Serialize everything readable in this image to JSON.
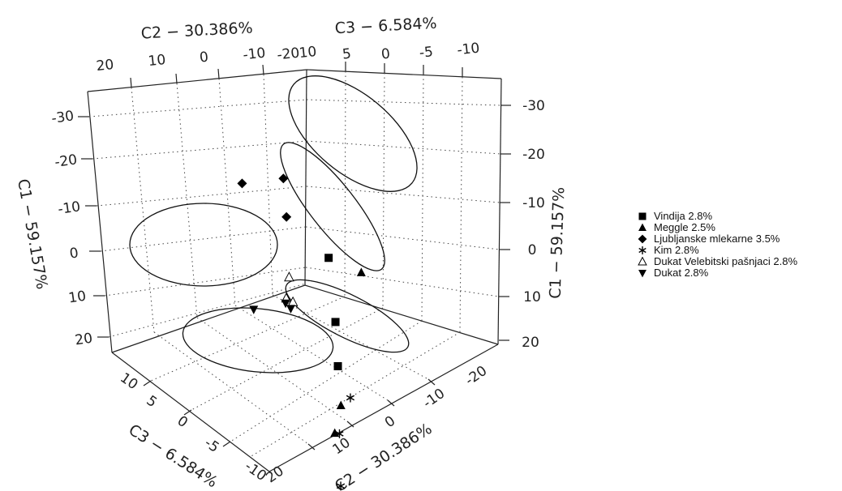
{
  "chart_data": {
    "type": "scatter",
    "projection": "3d",
    "title": "",
    "axes": {
      "c1": {
        "label": "C1 − 59.157%",
        "range": [
          -30,
          20
        ],
        "ticks": [
          "-30",
          "-20",
          "-10",
          "0",
          "10",
          "20"
        ]
      },
      "c2": {
        "label": "C2 − 30.386%",
        "range": [
          -20,
          20
        ],
        "ticks": [
          "20",
          "10",
          "0",
          "-10",
          "-20"
        ]
      },
      "c3": {
        "label": "C3 − 6.584%",
        "range": [
          -10,
          10
        ],
        "ticks": [
          "10",
          "5",
          "0",
          "-5",
          "-10"
        ]
      }
    },
    "grid": true,
    "legend_position": "right",
    "series": [
      {
        "name": "Vindija 2.8%",
        "marker": "square",
        "points": [
          [
            5,
            -4,
            6
          ],
          [
            -6,
            -4,
            7
          ],
          [
            -15,
            -5,
            4
          ]
        ]
      },
      {
        "name": "Meggle 2.5%",
        "marker": "triangle-up",
        "points": [
          [
            -26,
            -2,
            7
          ],
          [
            -22,
            -5,
            4
          ],
          [
            2,
            -12,
            3
          ]
        ]
      },
      {
        "name": "Ljubljanske mlekarne 3.5%",
        "marker": "diamond",
        "points": [
          [
            16,
            13,
            5
          ],
          [
            11,
            4,
            5
          ],
          [
            16,
            2,
            0
          ]
        ]
      },
      {
        "name": "Kim 2.8%",
        "marker": "star",
        "points": [
          [
            -35,
            -2,
            8
          ],
          [
            -26,
            -3,
            7
          ],
          [
            -23,
            -10,
            -3
          ]
        ]
      },
      {
        "name": "Dukat Velebitski pašnjaci 2.8%",
        "marker": "triangle-open",
        "points": [
          [
            -4,
            5,
            4
          ],
          [
            -6,
            2,
            0
          ],
          [
            -2,
            2,
            -1
          ]
        ]
      },
      {
        "name": "Dukat 2.8%",
        "marker": "triangle-down",
        "points": [
          [
            -6,
            13,
            6
          ],
          [
            -5,
            5,
            6
          ],
          [
            -6,
            4,
            1
          ]
        ]
      }
    ]
  }
}
